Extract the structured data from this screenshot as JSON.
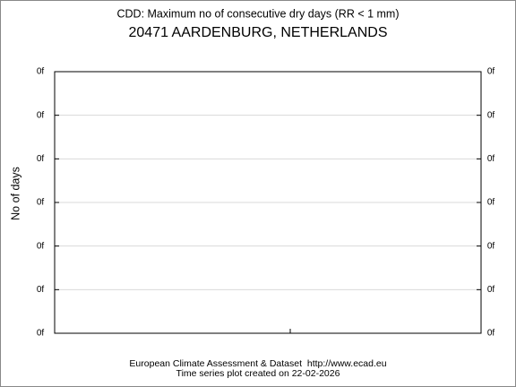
{
  "chart_data": {
    "type": "line",
    "title": "CDD: Maximum no of consecutive dry days (RR < 1 mm)",
    "subtitle": "20471 AARDENBURG, NETHERLANDS",
    "y_label": "No of days",
    "footer": [
      "European Climate Assessment & Dataset  http://www.ecad.eu",
      "Time series plot created on 22-02-2026"
    ],
    "series": [],
    "ylim": [
      0,
      6
    ],
    "yticks": [
      {
        "value": 0,
        "label": "0f"
      },
      {
        "value": 1,
        "label": "0f"
      },
      {
        "value": 2,
        "label": "0f"
      },
      {
        "value": 3,
        "label": "0f"
      },
      {
        "value": 4,
        "label": "0f"
      },
      {
        "value": 5,
        "label": "0f"
      },
      {
        "value": 6,
        "label": "0f"
      }
    ],
    "grid": true
  }
}
